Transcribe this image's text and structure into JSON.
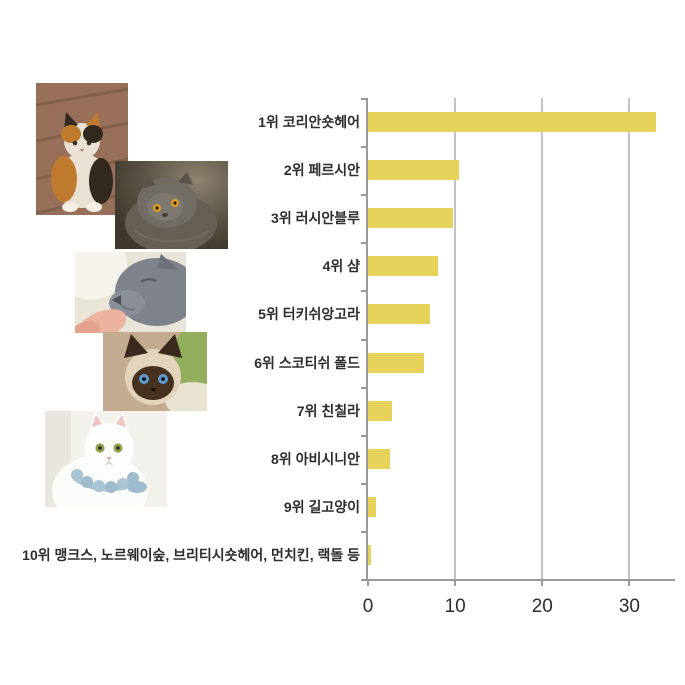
{
  "chart_data": {
    "type": "bar",
    "orientation": "horizontal",
    "title": "",
    "xlabel": "",
    "ylabel": "",
    "categories": [
      "1위 코리안숏헤어",
      "2위 페르시안",
      "3위 러시안블루",
      "4위 샴",
      "5위 터키쉬앙고라",
      "6위 스코티쉬 폴드",
      "7위 친칠라",
      "8위 아비시니안",
      "9위 길고양이",
      "10위 맹크스, 노르웨이숲, 브리티시숏헤어, 먼치킨, 랙돌 등"
    ],
    "values": [
      33,
      10.4,
      9.7,
      8,
      7.1,
      6.4,
      2.7,
      2.5,
      0.9,
      0.4
    ],
    "xlim": [
      0,
      35
    ],
    "x_ticks": [
      0,
      10,
      20,
      30
    ],
    "grid": true,
    "legend": false,
    "bar_color": "#e7d35c",
    "gridline_color": "#c3c3c3",
    "axis_color": "#9b9b9b",
    "text_color": "#2d2d2d"
  },
  "photos": [
    {
      "id": "calico",
      "desc": "calico cat sitting on a wooden floor"
    },
    {
      "id": "persian",
      "desc": "gray persian cat with orange eyes on dark background"
    },
    {
      "id": "russian-blue",
      "desc": "gray russian blue cat sniffing a person's finger"
    },
    {
      "id": "siamese",
      "desc": "siamese cat with dark mask and blue eyes"
    },
    {
      "id": "white-cat",
      "desc": "white cat with green eyes wearing a blue lace collar"
    }
  ]
}
